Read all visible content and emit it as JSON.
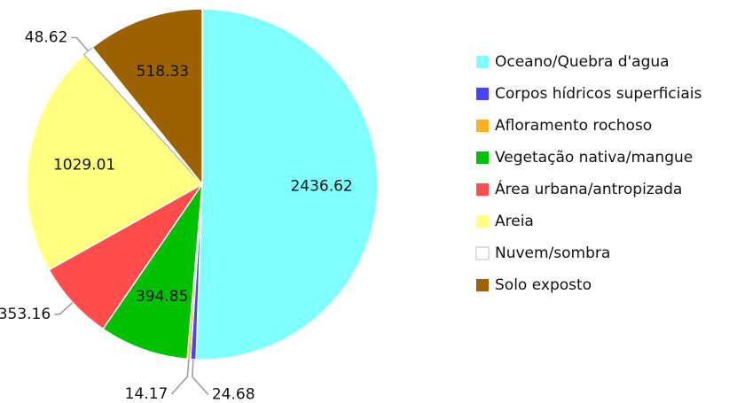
{
  "chart_data": {
    "type": "pie",
    "categories": [
      "Oceano/Quebra d'agua",
      "Corpos hídricos superficiais",
      "Afloramento rochoso",
      "Vegetação nativa/mangue",
      "Área urbana/antropizada",
      "Areia",
      "Nuvem/sombra",
      "Solo exposto"
    ],
    "values": [
      2436.62,
      24.68,
      14.17,
      394.85,
      353.16,
      1029.01,
      48.62,
      518.33
    ],
    "colors": [
      "#80ffff",
      "#4545ff",
      "#ffb01e",
      "#00c000",
      "#ff4d4d",
      "#ffff80",
      "#ffffff",
      "#9c6200"
    ],
    "legend": "right"
  }
}
